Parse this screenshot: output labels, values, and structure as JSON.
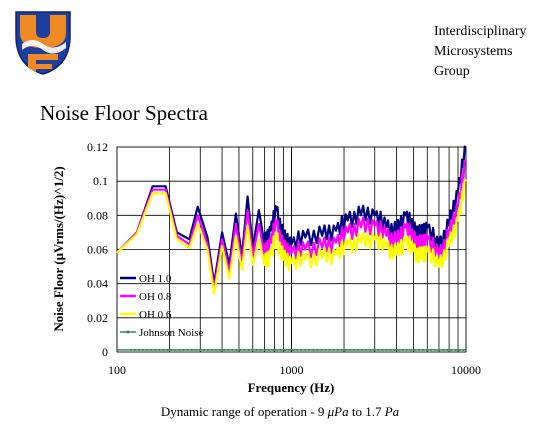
{
  "header": {
    "group_name": "Interdisciplinary\nMicrosystems\nGroup",
    "logo_icon": "uf-gator-logo-icon"
  },
  "slide": {
    "title": "Noise Floor Spectra"
  },
  "caption": {
    "text_prefix": "Dynamic range of operation - 9 ",
    "value_low": "μPa",
    "text_mid": " to 1.7 ",
    "value_high": "Pa"
  },
  "chart_data": {
    "type": "line",
    "xlabel": "Frequency (Hz)",
    "ylabel": "Noise Floor (μVrms/(Hz)^1/2)",
    "xscale": "log",
    "xlim": [
      100,
      10000
    ],
    "ylim": [
      0,
      0.12
    ],
    "xticks": [
      "100",
      "1000",
      "10000"
    ],
    "yticks": [
      "0",
      "0.02",
      "0.04",
      "0.06",
      "0.08",
      "0.1",
      "0.12"
    ],
    "legend_position": "bottom-left",
    "grid": true,
    "series": [
      {
        "name": "OH 1.0",
        "color": "#000080",
        "x": [
          100,
          130,
          160,
          190,
          220,
          260,
          290,
          330,
          360,
          400,
          440,
          480,
          520,
          560,
          600,
          650,
          700,
          760,
          820,
          900,
          1000,
          1200,
          1500,
          1800,
          2100,
          2500,
          3000,
          3500,
          4000,
          4500,
          5000,
          5500,
          6000,
          7000,
          8000,
          9000,
          10000
        ],
        "y": [
          0.058,
          0.07,
          0.097,
          0.097,
          0.07,
          0.066,
          0.085,
          0.067,
          0.04,
          0.07,
          0.051,
          0.081,
          0.056,
          0.091,
          0.061,
          0.083,
          0.063,
          0.071,
          0.083,
          0.066,
          0.063,
          0.067,
          0.068,
          0.071,
          0.077,
          0.08,
          0.08,
          0.073,
          0.07,
          0.08,
          0.072,
          0.068,
          0.073,
          0.061,
          0.074,
          0.094,
          0.12
        ]
      },
      {
        "name": "OH 0.8",
        "color": "#ff00ff",
        "x": [
          100,
          130,
          160,
          190,
          220,
          260,
          290,
          330,
          360,
          400,
          440,
          480,
          520,
          560,
          600,
          650,
          700,
          760,
          820,
          900,
          1000,
          1200,
          1500,
          1800,
          2100,
          2500,
          3000,
          3500,
          4000,
          4500,
          5000,
          5500,
          6000,
          7000,
          8000,
          9000,
          10000
        ],
        "y": [
          0.058,
          0.07,
          0.095,
          0.095,
          0.068,
          0.063,
          0.08,
          0.063,
          0.037,
          0.066,
          0.047,
          0.075,
          0.052,
          0.083,
          0.056,
          0.075,
          0.057,
          0.064,
          0.075,
          0.06,
          0.058,
          0.06,
          0.061,
          0.064,
          0.07,
          0.073,
          0.074,
          0.068,
          0.064,
          0.073,
          0.066,
          0.062,
          0.066,
          0.056,
          0.068,
          0.085,
          0.112
        ]
      },
      {
        "name": "OH 0.6",
        "color": "#ffff00",
        "x": [
          100,
          130,
          160,
          190,
          220,
          260,
          290,
          330,
          360,
          400,
          440,
          480,
          520,
          560,
          600,
          650,
          700,
          760,
          820,
          900,
          1000,
          1200,
          1500,
          1800,
          2100,
          2500,
          3000,
          3500,
          4000,
          4500,
          5000,
          5500,
          6000,
          7000,
          8000,
          9000,
          10000
        ],
        "y": [
          0.058,
          0.069,
          0.093,
          0.093,
          0.066,
          0.061,
          0.075,
          0.06,
          0.034,
          0.062,
          0.043,
          0.068,
          0.048,
          0.074,
          0.051,
          0.066,
          0.051,
          0.057,
          0.067,
          0.054,
          0.052,
          0.054,
          0.055,
          0.057,
          0.062,
          0.064,
          0.066,
          0.061,
          0.057,
          0.065,
          0.059,
          0.055,
          0.059,
          0.05,
          0.062,
          0.077,
          0.1
        ]
      },
      {
        "name": "Johnson Noise",
        "color": "#2e8b57",
        "x": [
          100,
          10000
        ],
        "y": [
          0.0012,
          0.0012
        ]
      }
    ]
  }
}
